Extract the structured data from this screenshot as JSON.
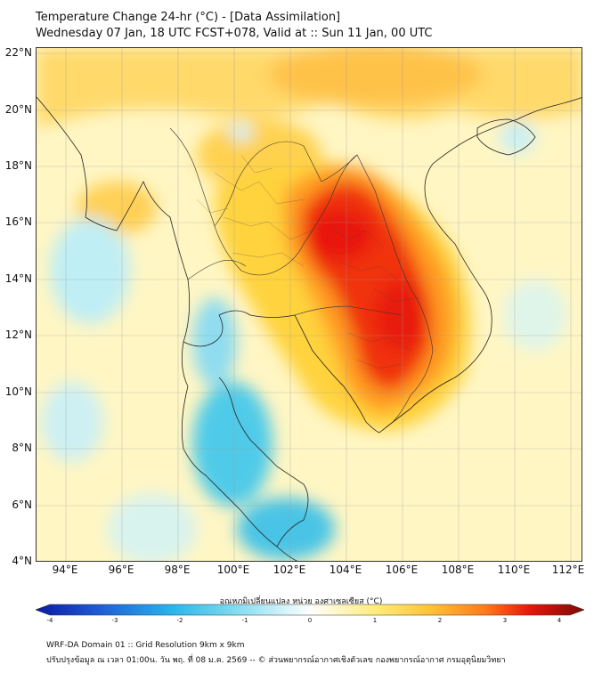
{
  "header": {
    "title_line1": "Temperature Change 24-hr (°C) - [Data Assimilation]",
    "title_line2": "Wednesday 07 Jan, 18 UTC FCST+078, Valid at :: Sun 11 Jan, 00 UTC"
  },
  "map": {
    "lat_labels": [
      "22°N",
      "20°N",
      "18°N",
      "16°N",
      "14°N",
      "12°N",
      "10°N",
      "8°N",
      "6°N",
      "4°N"
    ],
    "lon_labels": [
      "94°E",
      "96°E",
      "98°E",
      "100°E",
      "102°E",
      "104°E",
      "106°E",
      "108°E",
      "110°E",
      "112°E"
    ],
    "colors": {
      "warm_peak": "#e8160a",
      "warm_mid": "#ff8a1a",
      "warm_low": "#ffd23a",
      "neutral": "#fffbd8",
      "cool_low": "#9fe6f2",
      "cool_mid": "#35c6e8"
    }
  },
  "colorbar": {
    "label": "อุณหภูมิเปลี่ยนแปลง หน่วย องศาเซลเซียส (°C)",
    "ticks": [
      "-4",
      "-3",
      "-2",
      "-1",
      "0",
      "1",
      "2",
      "3",
      "4"
    ]
  },
  "footer": {
    "line1": "WRF-DA Domain 01 :: Grid Resolution 9km x 9km",
    "line2": "ปรับปรุงข้อมูล ณ เวลา 01:00น. วัน พฤ. ที่ 08 ม.ค. 2569 -- © ส่วนพยากรณ์อากาศเชิงตัวเลข กองพยากรณ์อากาศ กรมอุตุนิยมวิทยา"
  }
}
